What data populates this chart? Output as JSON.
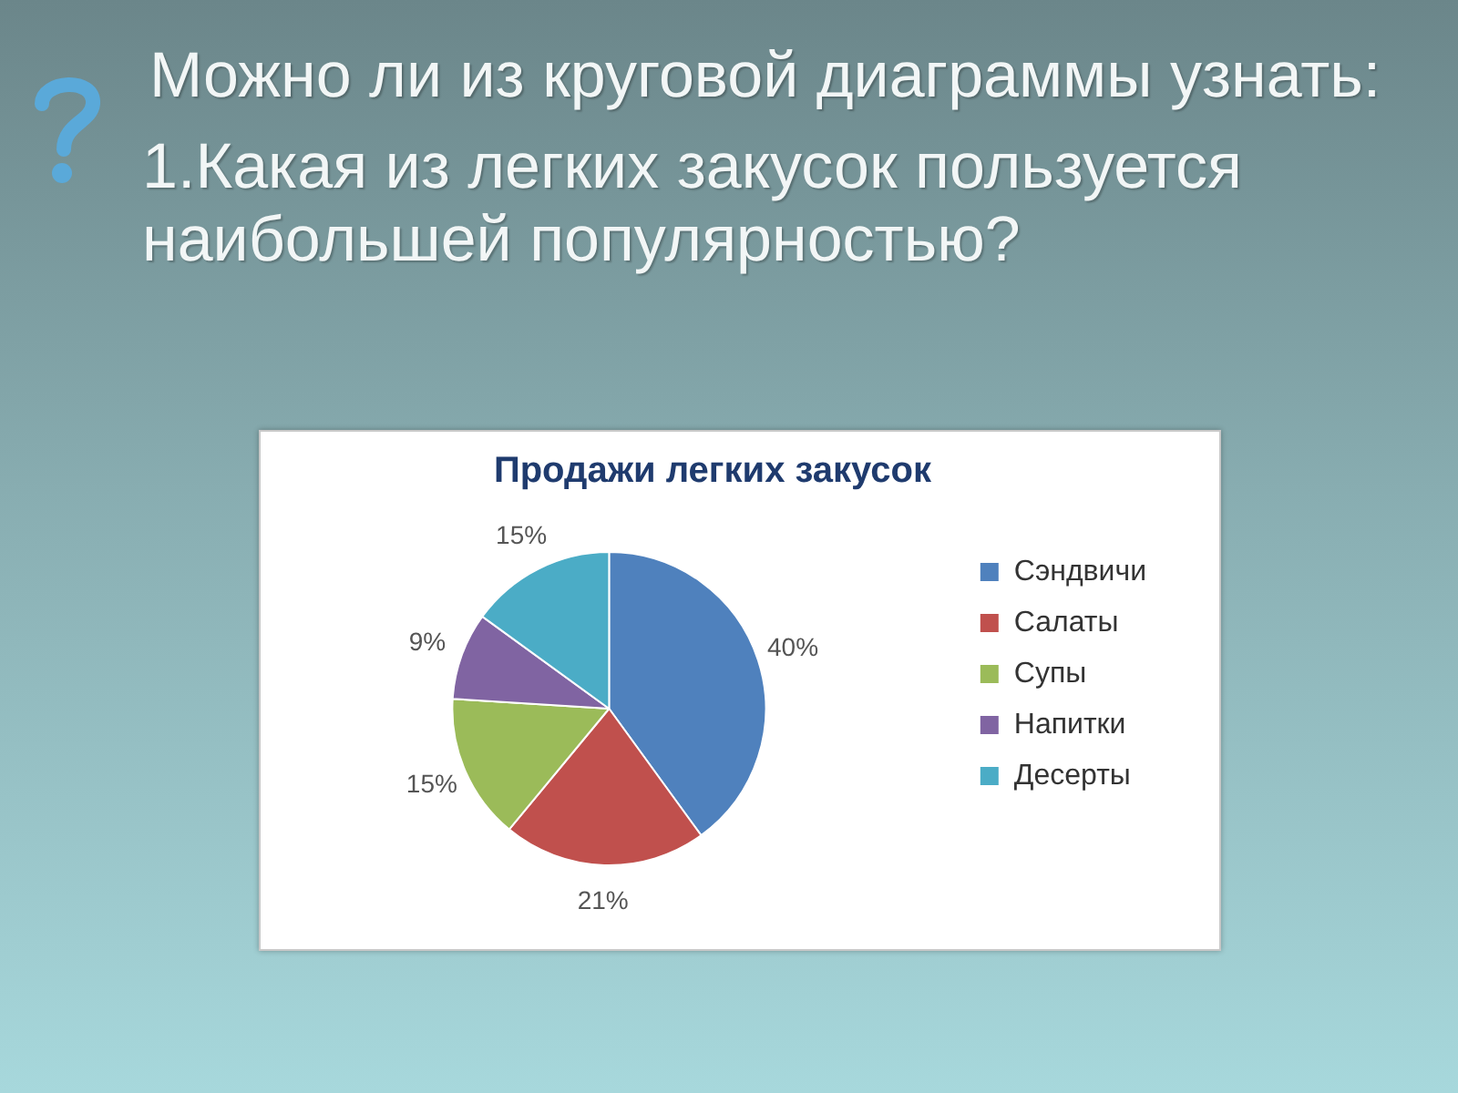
{
  "chart_data": {
    "type": "pie",
    "title": "Продажи легких закусок",
    "categories": [
      "Сэндвичи",
      "Салаты",
      "Супы",
      "Напитки",
      "Десерты"
    ],
    "values": [
      40,
      21,
      15,
      9,
      15
    ],
    "colors": [
      "#4f81bd",
      "#c0504d",
      "#9bbb59",
      "#8064a2",
      "#4bacc6"
    ],
    "value_labels": [
      "40%",
      "21%",
      "15%",
      "9%",
      "15%"
    ],
    "legend": "right",
    "annotations": [
      "Можно ли из круговой диаграммы узнать:",
      "1.Какая из легких закусок пользуется наибольшей популярностью?"
    ]
  }
}
